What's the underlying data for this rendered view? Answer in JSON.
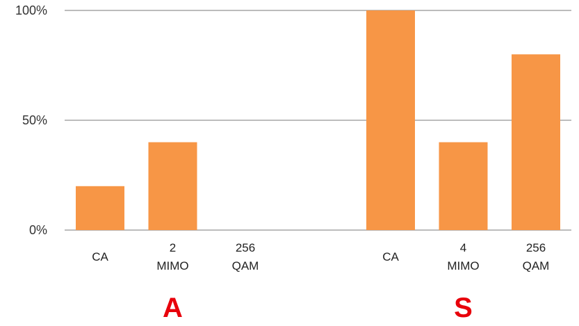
{
  "chart_data": {
    "type": "bar",
    "y_ticks": [
      "0%",
      "50%",
      "100%"
    ],
    "ylim": [
      0,
      100
    ],
    "grid": true,
    "bar_color": "#F79646",
    "grid_color": "#A6A6A6",
    "group_label_color": "#E8000B",
    "groups": [
      {
        "label": "A",
        "categories": [
          {
            "lines": [
              "CA"
            ],
            "value": 20
          },
          {
            "lines": [
              "2",
              "MIMO"
            ],
            "value": 40
          },
          {
            "lines": [
              "256",
              "QAM"
            ],
            "value": 0
          }
        ]
      },
      {
        "label": "S",
        "categories": [
          {
            "lines": [
              "CA"
            ],
            "value": 100
          },
          {
            "lines": [
              "4",
              "MIMO"
            ],
            "value": 40
          },
          {
            "lines": [
              "256",
              "QAM"
            ],
            "value": 80
          }
        ]
      }
    ]
  }
}
